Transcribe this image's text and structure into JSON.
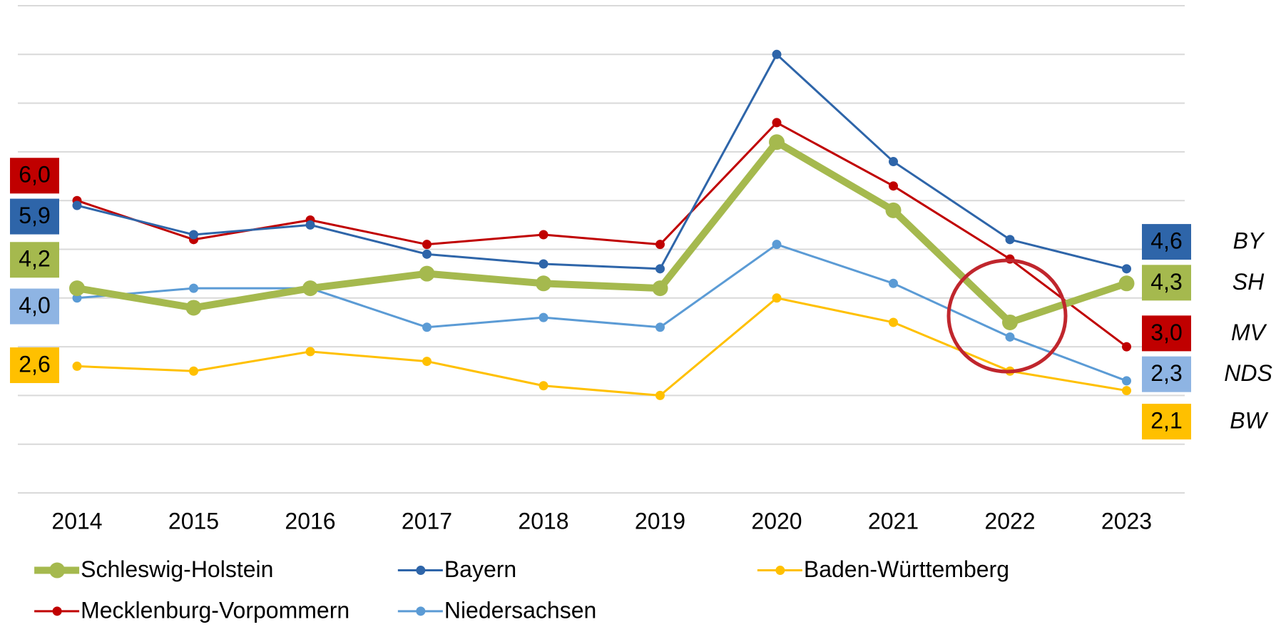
{
  "chart_data": {
    "type": "line",
    "categories": [
      "2014",
      "2015",
      "2016",
      "2017",
      "2018",
      "2019",
      "2020",
      "2021",
      "2022",
      "2023"
    ],
    "ylim": [
      0,
      10
    ],
    "yticks": [
      0,
      1,
      2,
      3,
      4,
      5,
      6,
      7,
      8,
      9,
      10
    ],
    "grid": true,
    "series": [
      {
        "name": "Schleswig-Holstein",
        "abbreviation": "SH",
        "color": "#a5b94e",
        "values": [
          4.2,
          3.8,
          4.2,
          4.5,
          4.3,
          4.2,
          7.2,
          5.8,
          3.5,
          4.3
        ],
        "value_labels": [
          "4,2",
          null,
          null,
          null,
          null,
          null,
          null,
          null,
          null,
          "4,3"
        ]
      },
      {
        "name": "Bayern",
        "abbreviation": "BY",
        "color": "#2e65a9",
        "values": [
          5.9,
          5.3,
          5.5,
          4.9,
          4.7,
          4.6,
          9.0,
          6.8,
          5.2,
          4.6
        ],
        "value_labels": [
          "5,9",
          null,
          null,
          null,
          null,
          null,
          null,
          null,
          null,
          "4,6"
        ]
      },
      {
        "name": "Baden-Württemberg",
        "abbreviation": "BW",
        "color": "#ffc000",
        "values": [
          2.6,
          2.5,
          2.9,
          2.7,
          2.2,
          2.0,
          4.0,
          3.5,
          2.5,
          2.1
        ],
        "value_labels": [
          "2,6",
          null,
          null,
          null,
          null,
          null,
          null,
          null,
          null,
          "2,1"
        ]
      },
      {
        "name": "Mecklenburg-Vorpommern",
        "abbreviation": "MV",
        "color": "#c00000",
        "values": [
          6.0,
          5.2,
          5.6,
          5.1,
          5.3,
          5.1,
          7.6,
          6.3,
          4.8,
          3.0
        ],
        "value_labels": [
          "6,0",
          null,
          null,
          null,
          null,
          null,
          null,
          null,
          null,
          "3,0"
        ]
      },
      {
        "name": "Niedersachsen",
        "abbreviation": "NDS",
        "color": "#5b9bd5",
        "values": [
          4.0,
          4.2,
          4.2,
          3.4,
          3.6,
          3.4,
          5.1,
          4.3,
          3.2,
          2.3
        ],
        "value_labels": [
          "4,0",
          null,
          null,
          null,
          null,
          null,
          null,
          null,
          null,
          "2,3"
        ]
      }
    ]
  }
}
